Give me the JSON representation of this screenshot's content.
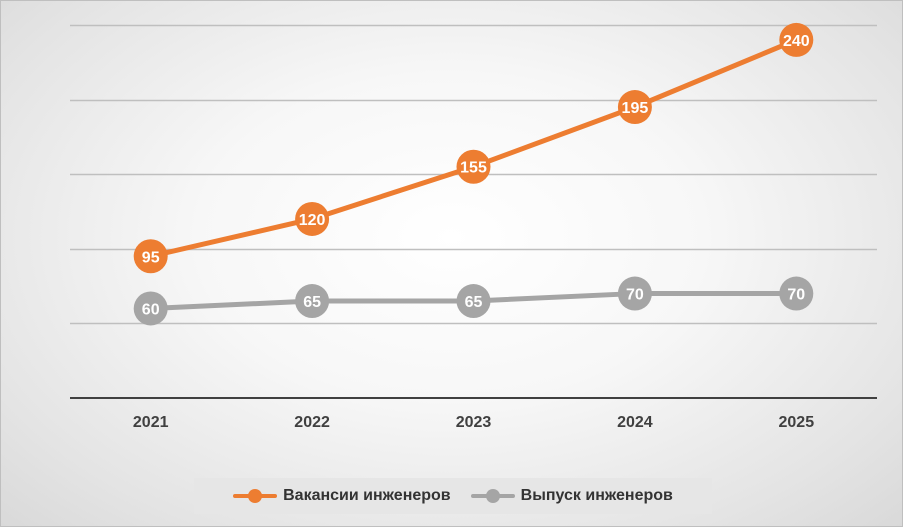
{
  "chart_data": {
    "type": "line",
    "title": "",
    "xlabel": "",
    "ylabel": "",
    "categories": [
      "2021",
      "2022",
      "2023",
      "2024",
      "2025"
    ],
    "ylim": [
      0,
      250
    ],
    "y_axis_labels_shown": false,
    "grid": true,
    "legend_position": "bottom",
    "data_labels": true,
    "series": [
      {
        "name": "Вакансии инженеров",
        "color": "#ed7d31",
        "values": [
          95,
          120,
          155,
          195,
          240
        ]
      },
      {
        "name": "Выпуск инженеров",
        "color": "#a5a5a5",
        "values": [
          60,
          65,
          65,
          70,
          70
        ]
      }
    ]
  }
}
